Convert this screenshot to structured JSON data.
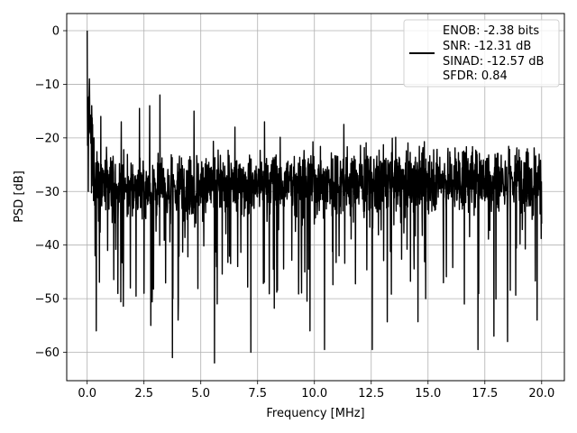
{
  "chart_data": {
    "type": "line",
    "xlabel": "Frequency [MHz]",
    "ylabel": "PSD [dB]",
    "xlim": [
      -0.9,
      21.0
    ],
    "ylim": [
      -65.3,
      3.2
    ],
    "xticks": [
      0.0,
      2.5,
      5.0,
      7.5,
      10.0,
      12.5,
      15.0,
      17.5,
      20.0
    ],
    "xtick_labels": [
      "0.0",
      "2.5",
      "5.0",
      "7.5",
      "10.0",
      "12.5",
      "15.0",
      "17.5",
      "20.0"
    ],
    "yticks": [
      0,
      -10,
      -20,
      -30,
      -40,
      -50,
      -60
    ],
    "ytick_labels": [
      "0",
      "−10",
      "−20",
      "−30",
      "−40",
      "−50",
      "−60"
    ],
    "grid": true,
    "legend_position": "top-right",
    "series": [
      {
        "color": "#000000",
        "x_start": 0.0,
        "x_end": 20.0,
        "points": 2000,
        "values_envelope": [
          [
            0.0,
            0.0
          ],
          [
            0.05,
            -30.0
          ],
          [
            0.1,
            -9.0
          ],
          [
            0.2,
            -14.0
          ],
          [
            0.3,
            -20.0
          ],
          [
            0.35,
            -42.0
          ],
          [
            0.4,
            -56.0
          ],
          [
            0.6,
            -16.0
          ],
          [
            0.9,
            -41.0
          ],
          [
            1.5,
            -17.0
          ],
          [
            1.9,
            -48.0
          ],
          [
            2.3,
            -14.5
          ],
          [
            2.5,
            -49.0
          ],
          [
            2.75,
            -14.0
          ],
          [
            2.8,
            -55.0
          ],
          [
            3.2,
            -12.0
          ],
          [
            3.75,
            -61.0
          ],
          [
            4.0,
            -54.0
          ],
          [
            4.7,
            -15.0
          ],
          [
            5.6,
            -62.0
          ],
          [
            6.5,
            -18.0
          ],
          [
            7.2,
            -60.0
          ],
          [
            7.8,
            -17.0
          ],
          [
            9.8,
            -56.0
          ],
          [
            10.45,
            -59.5
          ],
          [
            11.3,
            -17.5
          ],
          [
            12.55,
            -59.5
          ],
          [
            14.9,
            -50.0
          ],
          [
            16.6,
            -51.0
          ],
          [
            17.2,
            -59.5
          ],
          [
            17.9,
            -57.0
          ],
          [
            18.5,
            -58.0
          ],
          [
            19.8,
            -54.0
          ],
          [
            20.0,
            -36.0
          ]
        ]
      }
    ],
    "legend_entries": [
      "ENOB: -2.38 bits",
      "SNR: -12.31 dB",
      "SINAD: -12.57 dB",
      "SFDR: 0.84"
    ]
  }
}
